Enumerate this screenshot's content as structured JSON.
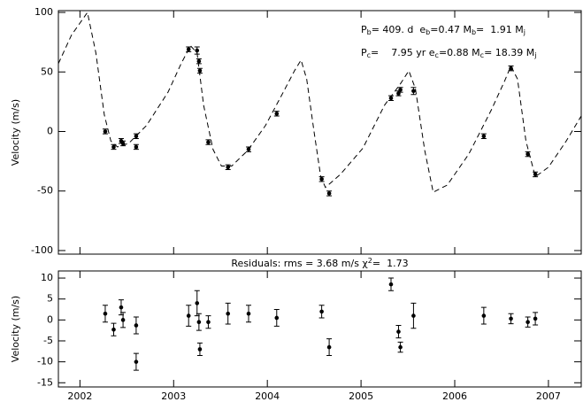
{
  "chart_data": [
    {
      "type": "scatter",
      "y_label": "Velocity (m/s)",
      "annotations": [
        [
          {
            "text": "P"
          },
          {
            "text": "b",
            "sub": true
          },
          {
            "text": "= 409. d  e"
          },
          {
            "text": "b",
            "sub": true
          },
          {
            "text": "=0.47 M"
          },
          {
            "text": "b",
            "sub": true
          },
          {
            "text": "=  1.91 M"
          },
          {
            "text": "j",
            "sub": true
          }
        ],
        [
          {
            "text": "P"
          },
          {
            "text": "c",
            "sub": true
          },
          {
            "text": "=    7.95 yr e"
          },
          {
            "text": "c",
            "sub": true
          },
          {
            "text": "=0.88 M"
          },
          {
            "text": "c",
            "sub": true
          },
          {
            "text": "= 18.39 M"
          },
          {
            "text": "j",
            "sub": true
          }
        ]
      ],
      "x": [
        2002.27,
        2002.36,
        2002.44,
        2002.46,
        2002.6,
        2002.6,
        2003.16,
        2003.25,
        2003.27,
        2003.28,
        2003.37,
        2003.58,
        2003.8,
        2004.1,
        2004.58,
        2004.66,
        2005.32,
        2005.4,
        2005.42,
        2005.56,
        2006.31,
        2006.6,
        2006.78,
        2006.86
      ],
      "values": [
        0,
        -13,
        -8,
        -10,
        -4,
        -13,
        69,
        68,
        59,
        51,
        -9,
        -30,
        -15,
        15,
        -40,
        -52,
        28,
        32,
        35,
        34,
        -4,
        53,
        -19,
        -36
      ],
      "errors": [
        2,
        2,
        2,
        2,
        2,
        2,
        2,
        3,
        2,
        2,
        2,
        2,
        2,
        2,
        2,
        2,
        2,
        2,
        2,
        3,
        2,
        2,
        2,
        2
      ],
      "color": "#000000",
      "curve": {
        "x": [
          2001.77,
          2001.91,
          2002.08,
          2002.17,
          2002.26,
          2002.33,
          2002.4,
          2002.52,
          2002.71,
          2002.94,
          2003.08,
          2003.18,
          2003.25,
          2003.32,
          2003.42,
          2003.51,
          2003.62,
          2003.79,
          2003.98,
          2004.17,
          2004.29,
          2004.36,
          2004.42,
          2004.5,
          2004.57,
          2004.62,
          2004.78,
          2005.02,
          2005.25,
          2005.42,
          2005.51,
          2005.58,
          2005.68,
          2005.77,
          2005.92,
          2006.15,
          2006.39,
          2006.53,
          2006.6,
          2006.67,
          2006.76,
          2006.86,
          2007.0,
          2007.19,
          2007.35
        ],
        "values": [
          57,
          81,
          100,
          66,
          14,
          -8,
          -13,
          -10,
          5,
          33,
          57,
          72,
          66,
          22,
          -15,
          -29,
          -29,
          -16,
          5,
          33,
          51,
          60,
          44,
          -1,
          -38,
          -47,
          -36,
          -14,
          22,
          40,
          51,
          36,
          -16,
          -51,
          -45,
          -19,
          18,
          42,
          55,
          44,
          -8,
          -38,
          -30,
          -8,
          13
        ]
      },
      "xlim": [
        2001.77,
        2007.35
      ],
      "xticks": [
        2002,
        2003,
        2004,
        2005,
        2006,
        2007
      ],
      "ylim": [
        -103,
        101.5
      ],
      "yticks": [
        100,
        50,
        0,
        -50,
        -100
      ]
    },
    {
      "type": "scatter",
      "title": [
        {
          "text": "Residuals: rms = 3.68 m/s χ"
        },
        {
          "text": "2",
          "sup": true
        },
        {
          "text": "=  1.73"
        }
      ],
      "y_label": "Velocity (m/s)",
      "x": [
        2002.27,
        2002.36,
        2002.44,
        2002.46,
        2002.6,
        2002.6,
        2003.16,
        2003.25,
        2003.27,
        2003.28,
        2003.37,
        2003.58,
        2003.8,
        2004.1,
        2004.58,
        2004.66,
        2005.32,
        2005.4,
        2005.42,
        2005.56,
        2006.31,
        2006.6,
        2006.78,
        2006.86
      ],
      "values": [
        1.5,
        -2.3,
        3,
        0,
        -1.3,
        -10,
        1,
        4,
        -0.5,
        -7,
        -0.5,
        1.5,
        1.5,
        0.5,
        2,
        -6.5,
        8.5,
        -2.8,
        -6.5,
        1,
        1,
        0.3,
        -0.5,
        0.3
      ],
      "errors": [
        2,
        1.5,
        1.8,
        1.8,
        2,
        2,
        2.5,
        3,
        2,
        1.5,
        1.5,
        2.5,
        2,
        2,
        1.5,
        2,
        1.5,
        1.5,
        1.2,
        3,
        2,
        1.2,
        1.2,
        1.5
      ],
      "color": "#000000",
      "xlim": [
        2001.77,
        2007.35
      ],
      "xticks": [
        2002,
        2003,
        2004,
        2005,
        2006,
        2007
      ],
      "ylim": [
        -16,
        11.7
      ],
      "yticks": [
        10,
        5,
        0,
        -5,
        -10,
        -15
      ]
    }
  ]
}
